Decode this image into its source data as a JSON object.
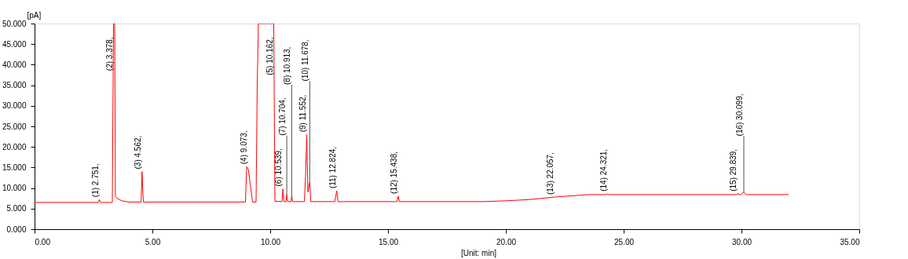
{
  "chart_data": {
    "type": "line",
    "xlabel": "[Unit: min]",
    "ylabel": "[pA]",
    "xlim": [
      0,
      35
    ],
    "xticks": [
      {
        "value": 0,
        "label": "0.00"
      },
      {
        "value": 5,
        "label": "5.00"
      },
      {
        "value": 10,
        "label": "10.00"
      },
      {
        "value": 15,
        "label": "15.00"
      },
      {
        "value": 20,
        "label": "20.00"
      },
      {
        "value": 25,
        "label": "25.00"
      },
      {
        "value": 30,
        "label": "30.00"
      },
      {
        "value": 35,
        "label": "35.00"
      }
    ],
    "ylim": [
      0,
      50
    ],
    "yticks": [
      {
        "value": 0,
        "label": "0.000"
      },
      {
        "value": 5,
        "label": "5.000"
      },
      {
        "value": 10,
        "label": "10.000"
      },
      {
        "value": 15,
        "label": "15.000"
      },
      {
        "value": 20,
        "label": "20.000"
      },
      {
        "value": 25,
        "label": "25.000"
      },
      {
        "value": 30,
        "label": "30.000"
      },
      {
        "value": 35,
        "label": "35.000"
      },
      {
        "value": 40,
        "label": "40.000"
      },
      {
        "value": 45,
        "label": "45.000"
      },
      {
        "value": 50,
        "label": "50.000"
      }
    ],
    "grid": false,
    "marker": "none",
    "line_style": "solid",
    "series": [
      {
        "color": "#ff0000",
        "x": [
          0,
          2.7,
          2.751,
          2.8,
          3.3,
          3.35,
          3.4,
          3.43,
          3.5,
          3.7,
          4.0,
          4.52,
          4.562,
          4.59,
          4.62,
          6.5,
          8.95,
          9.0,
          9.073,
          9.25,
          9.4,
          9.45,
          9.5,
          10.15,
          10.2,
          10.5,
          10.539,
          10.58,
          10.67,
          10.704,
          10.74,
          10.88,
          10.913,
          10.95,
          11.45,
          11.5,
          11.552,
          11.6,
          11.678,
          11.72,
          12.74,
          12.824,
          12.88,
          15.38,
          15.438,
          15.48,
          19.0,
          20.0,
          21.0,
          22.057,
          23.0,
          23.5,
          24.26,
          24.321,
          24.38,
          29.78,
          29.839,
          29.95,
          30.099,
          30.2,
          32.0
        ],
        "values": [
          6.5,
          6.5,
          7.2,
          6.5,
          6.5,
          50,
          50,
          8.0,
          7.5,
          6.9,
          6.6,
          6.6,
          14.0,
          9.5,
          6.6,
          6.6,
          6.6,
          15.2,
          14.5,
          6.6,
          6.6,
          35.5,
          50,
          50,
          6.8,
          6.7,
          9.8,
          6.7,
          6.7,
          8.4,
          6.7,
          6.7,
          8.1,
          6.7,
          6.7,
          13.0,
          23.0,
          9.0,
          11.5,
          6.7,
          6.7,
          9.3,
          6.7,
          6.7,
          8.0,
          6.7,
          6.7,
          6.9,
          7.2,
          7.8,
          8.2,
          8.4,
          8.4,
          8.6,
          8.4,
          8.4,
          8.6,
          8.4,
          9.0,
          8.4,
          8.4
        ]
      }
    ],
    "annotations": [
      {
        "text": "(1) 2.751,",
        "x": 2.751,
        "y": 7.2
      },
      {
        "text": "(2) 3.378,",
        "x": 3.378,
        "y": 50
      },
      {
        "text": "(3) 4.562,",
        "x": 4.562,
        "y": 14.0
      },
      {
        "text": "(4) 9.073,",
        "x": 9.073,
        "y": 15.2
      },
      {
        "text": "(5) 10.162,",
        "x": 10.162,
        "y": 50
      },
      {
        "text": "(6) 10.539,",
        "x": 10.539,
        "y": 9.8
      },
      {
        "text": "(7) 10.704,",
        "x": 10.704,
        "y": 8.4
      },
      {
        "text": "(8) 10.913,",
        "x": 10.913,
        "y": 8.1
      },
      {
        "text": "(9) 11.552,",
        "x": 11.552,
        "y": 23.0
      },
      {
        "text": "(10) 11.678,",
        "x": 11.678,
        "y": 11.5
      },
      {
        "text": "(11) 12.824,",
        "x": 12.824,
        "y": 9.3
      },
      {
        "text": "(12) 15.438,",
        "x": 15.438,
        "y": 8.0
      },
      {
        "text": "(13) 22.057,",
        "x": 22.057,
        "y": 7.8
      },
      {
        "text": "(14) 24.321,",
        "x": 24.321,
        "y": 8.6
      },
      {
        "text": "(15) 29.839,",
        "x": 29.839,
        "y": 8.6
      },
      {
        "text": "(16) 30.099,",
        "x": 30.099,
        "y": 9.0
      }
    ]
  }
}
